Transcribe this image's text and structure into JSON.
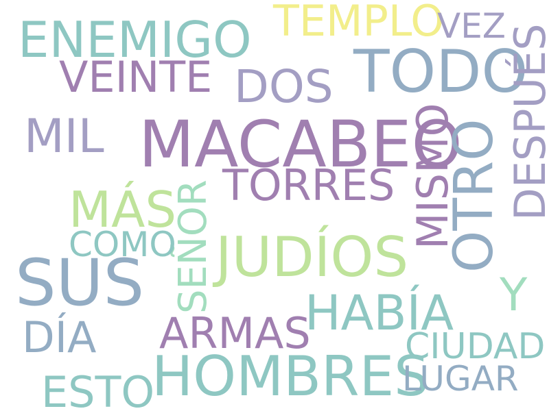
{
  "palette": {
    "teal": "#8ec7c2",
    "blue_gray": "#93acc3",
    "purple": "#a07fb0",
    "lavender": "#a39ec3",
    "light_green": "#bfe39b",
    "yellow": "#f2ee8b",
    "mint": "#a2ddbe"
  },
  "words": [
    {
      "id": "enemigo",
      "text": "ENEMIGO"
    },
    {
      "id": "templo",
      "text": "TEMPLO"
    },
    {
      "id": "vez",
      "text": "VEZ"
    },
    {
      "id": "veinte",
      "text": "VEINTE"
    },
    {
      "id": "dos",
      "text": "DOS"
    },
    {
      "id": "todo",
      "text": "TODO"
    },
    {
      "id": "despues",
      "text": "DESPUÉS"
    },
    {
      "id": "mil",
      "text": "MIL"
    },
    {
      "id": "macabeo",
      "text": "MACABEO"
    },
    {
      "id": "mismo",
      "text": "MISMO"
    },
    {
      "id": "otro",
      "text": "OTRO"
    },
    {
      "id": "torres",
      "text": "TORRES"
    },
    {
      "id": "mas",
      "text": "MÁS"
    },
    {
      "id": "senor",
      "text": "SEÑOR"
    },
    {
      "id": "como",
      "text": "COMO"
    },
    {
      "id": "judios",
      "text": "JUDÍOS"
    },
    {
      "id": "sus",
      "text": "SUS"
    },
    {
      "id": "y",
      "text": "Y"
    },
    {
      "id": "habia",
      "text": "HABÍA"
    },
    {
      "id": "dia",
      "text": "DÍA"
    },
    {
      "id": "armas",
      "text": "ARMAS"
    },
    {
      "id": "ciudad",
      "text": "CIUDAD"
    },
    {
      "id": "hombres",
      "text": "HOMBRES"
    },
    {
      "id": "lugar",
      "text": "LUGAR"
    },
    {
      "id": "esto",
      "text": "ESTO"
    }
  ]
}
